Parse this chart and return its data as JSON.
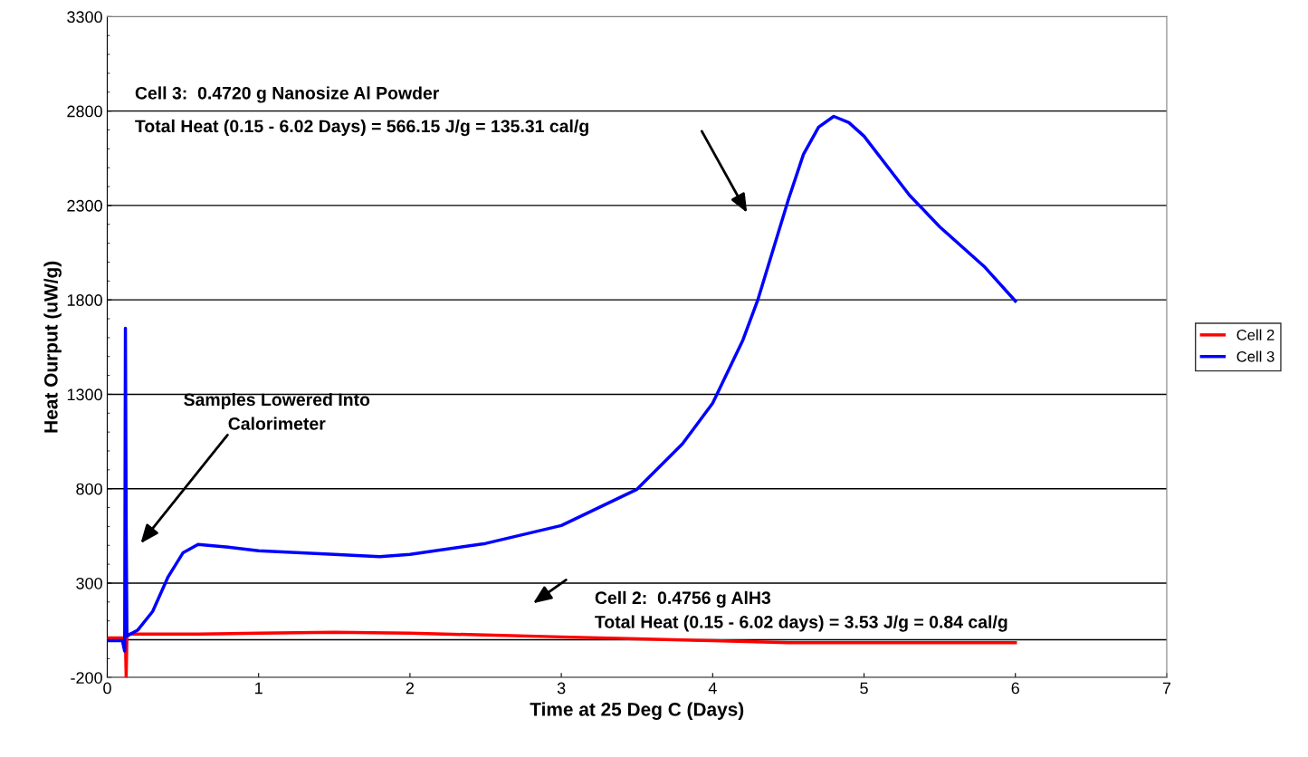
{
  "chart_data": {
    "type": "line",
    "xlabel": "Time at 25 Deg C (Days)",
    "ylabel": "Heat Ourput (uW/g)",
    "xlim": [
      0,
      7
    ],
    "xticks": [
      0,
      1,
      2,
      3,
      4,
      5,
      6,
      7
    ],
    "ylim": [
      -200,
      3300
    ],
    "yticks": [
      -200,
      300,
      800,
      1300,
      1800,
      2300,
      2800,
      3300
    ],
    "grid": "y",
    "legend": "right",
    "marker": "none",
    "line_style": "solid",
    "ref_lines": [
      {
        "axis": "y",
        "value": 0,
        "color": "#000000"
      }
    ],
    "series": [
      {
        "name": "Cell 2",
        "color": "#ff0000",
        "x": [
          0,
          0.1,
          0.12,
          0.125,
          0.13,
          0.15,
          0.3,
          0.6,
          1.0,
          1.5,
          2.0,
          2.5,
          3.0,
          3.5,
          4.0,
          4.5,
          5.0,
          5.5,
          6.0
        ],
        "values": [
          10,
          10,
          0,
          -200,
          20,
          30,
          30,
          30,
          35,
          40,
          35,
          25,
          15,
          5,
          -5,
          -15,
          -15,
          -15,
          -15
        ]
      },
      {
        "name": "Cell 3",
        "color": "#0000ff",
        "x": [
          0,
          0.1,
          0.115,
          0.12,
          0.125,
          0.13,
          0.2,
          0.3,
          0.4,
          0.5,
          0.6,
          0.8,
          1.0,
          1.5,
          1.8,
          2.0,
          2.5,
          3.0,
          3.5,
          3.8,
          4.0,
          4.2,
          4.3,
          4.5,
          4.6,
          4.7,
          4.8,
          4.9,
          5.0,
          5.3,
          5.5,
          5.8,
          6.0
        ],
        "values": [
          -5,
          -5,
          -60,
          1650,
          600,
          20,
          50,
          150,
          330,
          460,
          505,
          490,
          471,
          452,
          440,
          452,
          510,
          605,
          797,
          1037,
          1253,
          1588,
          1804,
          2331,
          2571,
          2715,
          2772,
          2739,
          2667,
          2355,
          2187,
          1972,
          1794
        ]
      }
    ],
    "annotations": [
      "Cell 3:  0.4720 g Nanosize Al Powder\nTotal Heat (0.15 - 6.02 Days) = 566.15 J/g = 135.31 cal/g",
      "Samples Lowered Into\nCalorimeter",
      "Cell 2:  0.4756 g AlH3\nTotal Heat (0.15 - 6.02 days) = 3.53 J/g = 0.84 cal/g"
    ]
  }
}
